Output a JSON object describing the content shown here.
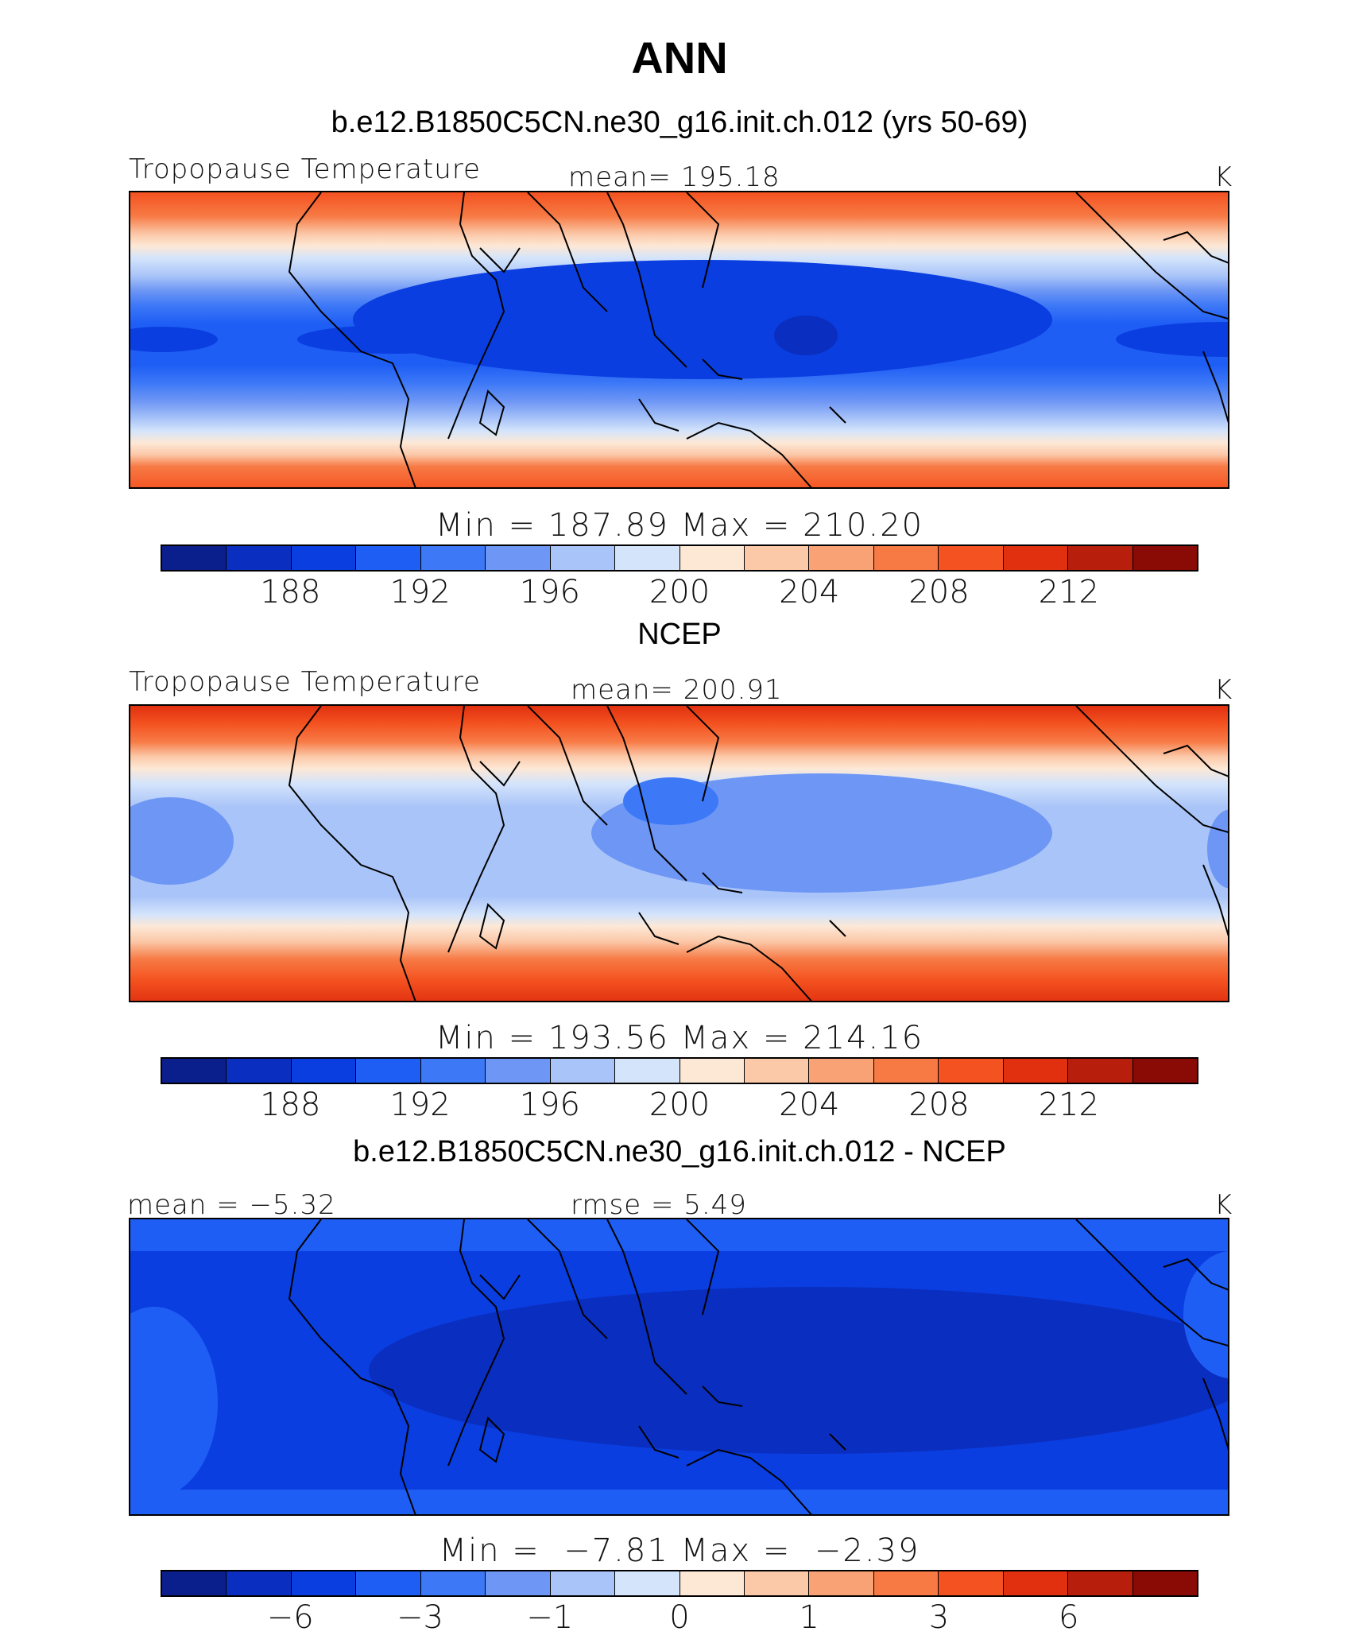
{
  "title": "ANN",
  "colorbar_colors": [
    "#0b1f8c",
    "#0a2ebf",
    "#0a3ee0",
    "#1f5ef5",
    "#3d78f7",
    "#6d96f5",
    "#a9c4f8",
    "#d4e4fb",
    "#fde8d6",
    "#fbc8a8",
    "#f9a275",
    "#f77a45",
    "#f45220",
    "#e03010",
    "#b81e0c",
    "#8a0a05"
  ],
  "panels": [
    {
      "heading": "b.e12.B1850C5CN.ne30_g16.init.ch.012 (yrs 50-69)",
      "left_label": "Tropopause Temperature",
      "center_label": "mean= 195.18",
      "units": "K",
      "minmax": "Min = 187.89 Max = 210.20",
      "tick_labels": [
        "188",
        "192",
        "196",
        "200",
        "204",
        "208",
        "212"
      ]
    },
    {
      "heading": "NCEP",
      "left_label": "Tropopause Temperature",
      "center_label": "mean= 200.91",
      "units": "K",
      "minmax": "Min = 193.56 Max = 214.16",
      "tick_labels": [
        "188",
        "192",
        "196",
        "200",
        "204",
        "208",
        "212"
      ]
    },
    {
      "heading": "b.e12.B1850C5CN.ne30_g16.init.ch.012 - NCEP",
      "left_label": "mean =  −5.32",
      "center_label": "rmse =    5.49",
      "units": "K",
      "minmax": "Min =  −7.81 Max =  −2.39",
      "tick_labels": [
        "−6",
        "−3",
        "−1",
        "0",
        "1",
        "3",
        "6"
      ]
    }
  ]
}
